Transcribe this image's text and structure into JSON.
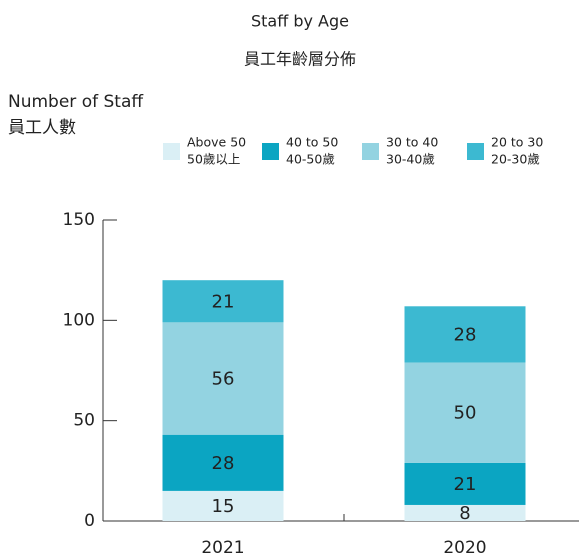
{
  "chart_data": {
    "type": "stacked_bar",
    "title": "Staff by Age",
    "subtitle": "員工年齡層分佈",
    "y_label": "Number of Staff",
    "y_label_zh": "員工人數",
    "categories": [
      "2021",
      "2020"
    ],
    "series": [
      {
        "name": "Above 50",
        "name_zh": "50歲以上",
        "color": "#daeff5",
        "values": [
          15,
          8
        ]
      },
      {
        "name": "40 to 50",
        "name_zh": "40-50歲",
        "color": "#0ba5c2",
        "values": [
          28,
          21
        ]
      },
      {
        "name": "30 to 40",
        "name_zh": "30-40歲",
        "color": "#93d3e1",
        "values": [
          56,
          50
        ]
      },
      {
        "name": "20 to 30",
        "name_zh": "20-30歲",
        "color": "#3cb9d1",
        "values": [
          21,
          28
        ]
      }
    ],
    "ylim": [
      0,
      150
    ],
    "yticks": [
      0,
      50,
      100,
      150
    ]
  }
}
